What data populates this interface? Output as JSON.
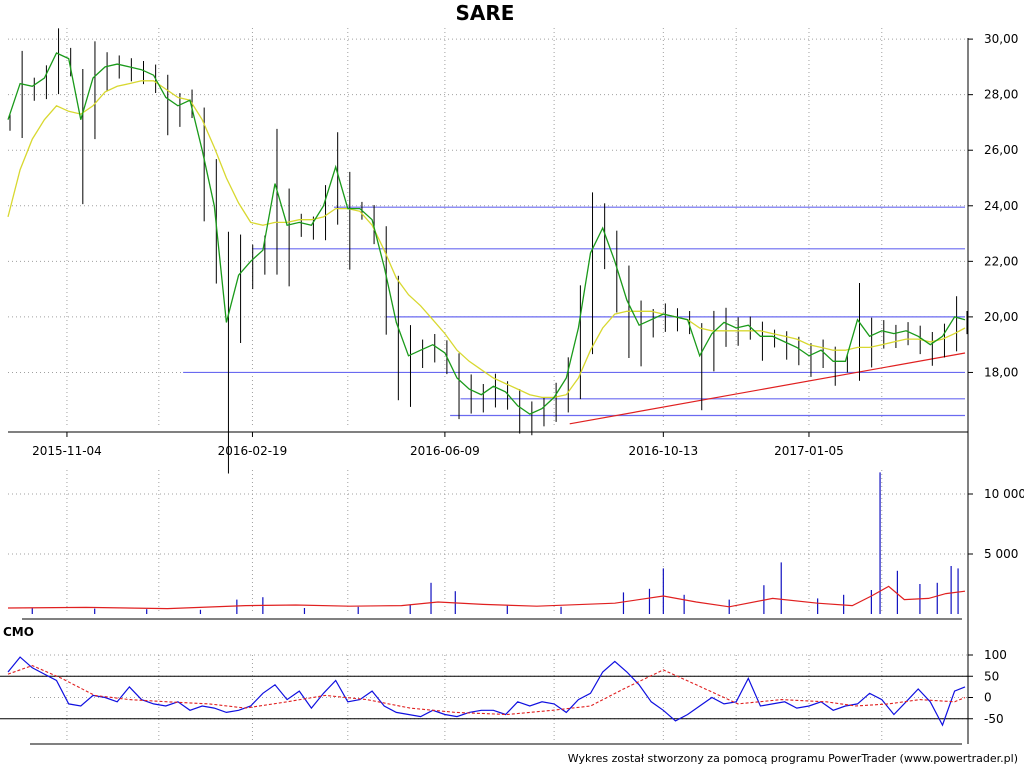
{
  "chart_data": {
    "type": "line",
    "title": "SARE",
    "footer": "Wykres został stworzony za pomocą programu PowerTrader (www.powertrader.pl)",
    "colors": {
      "price_bars": "#000000",
      "ma_fast": "#1a9a1a",
      "ma_slow": "#d8d830",
      "support_lines": "#6a6af0",
      "trend_line": "#e02020",
      "volume_bars": "#1010c0",
      "volume_avg": "#e02020",
      "cmo": "#1010e0",
      "cmo_signal": "#e02020",
      "grid": "#a0a0a0"
    },
    "x_axis": {
      "type": "date",
      "range": [
        "2015-10-01",
        "2017-04-05"
      ],
      "tick_labels": [
        "2015-11-04",
        "2016-02-19",
        "2016-06-09",
        "2016-10-13",
        "2017-01-05"
      ],
      "tick_dates": [
        "2015-11-04",
        "2016-02-19",
        "2016-06-09",
        "2016-10-13",
        "2017-01-05"
      ]
    },
    "price_panel": {
      "ylim": [
        16.0,
        30.4
      ],
      "yticks": [
        18,
        20,
        22,
        24,
        26,
        28,
        30
      ],
      "ytick_labels": [
        "18,00",
        "20,00",
        "22,00",
        "24,00",
        "26,00",
        "28,00",
        "30,00"
      ],
      "grid": true,
      "horizontal_levels": [
        {
          "value": 23.95,
          "from": "2016-04-06",
          "to": "2017-04-05"
        },
        {
          "value": 22.45,
          "from": "2016-02-19",
          "to": "2017-04-05"
        },
        {
          "value": 20.0,
          "from": "2016-05-06",
          "to": "2017-04-05"
        },
        {
          "value": 18.0,
          "from": "2016-01-10",
          "to": "2017-04-05"
        },
        {
          "value": 17.05,
          "from": "2016-06-18",
          "to": "2017-04-05"
        },
        {
          "value": 16.45,
          "from": "2016-06-12",
          "to": "2017-04-05"
        }
      ],
      "trend_line": {
        "start": [
          "2016-08-20",
          16.15
        ],
        "end": [
          "2017-04-05",
          18.7
        ]
      },
      "ma_fast": {
        "x": [
          "2015-10-01",
          "2015-10-08",
          "2015-10-15",
          "2015-10-22",
          "2015-10-29",
          "2015-11-05",
          "2015-11-12",
          "2015-11-19",
          "2015-11-26",
          "2015-12-03",
          "2015-12-10",
          "2015-12-17",
          "2015-12-24",
          "2015-12-31",
          "2016-01-07",
          "2016-01-14",
          "2016-01-21",
          "2016-01-28",
          "2016-02-04",
          "2016-02-11",
          "2016-02-18",
          "2016-02-25",
          "2016-03-03",
          "2016-03-10",
          "2016-03-17",
          "2016-03-24",
          "2016-03-31",
          "2016-04-07",
          "2016-04-14",
          "2016-04-21",
          "2016-04-28",
          "2016-05-05",
          "2016-05-12",
          "2016-05-19",
          "2016-05-26",
          "2016-06-02",
          "2016-06-09",
          "2016-06-16",
          "2016-06-23",
          "2016-06-30",
          "2016-07-07",
          "2016-07-14",
          "2016-07-21",
          "2016-07-28",
          "2016-08-04",
          "2016-08-11",
          "2016-08-18",
          "2016-08-25",
          "2016-09-01",
          "2016-09-08",
          "2016-09-15",
          "2016-09-22",
          "2016-09-29",
          "2016-10-06",
          "2016-10-13",
          "2016-10-20",
          "2016-10-27",
          "2016-11-03",
          "2016-11-10",
          "2016-11-17",
          "2016-11-24",
          "2016-12-01",
          "2016-12-08",
          "2016-12-15",
          "2016-12-22",
          "2016-12-29",
          "2017-01-05",
          "2017-01-12",
          "2017-01-19",
          "2017-01-26",
          "2017-02-02",
          "2017-02-09",
          "2017-02-16",
          "2017-02-23",
          "2017-03-02",
          "2017-03-09",
          "2017-03-16",
          "2017-03-23",
          "2017-03-30",
          "2017-04-05"
        ],
        "y": [
          27.1,
          28.4,
          28.3,
          28.6,
          29.5,
          29.3,
          27.1,
          28.6,
          29.0,
          29.1,
          29.0,
          28.9,
          28.7,
          27.9,
          27.6,
          27.8,
          26.0,
          24.0,
          19.8,
          21.5,
          22.0,
          22.4,
          24.8,
          23.3,
          23.4,
          23.3,
          24.0,
          25.4,
          23.9,
          23.9,
          23.5,
          21.8,
          19.8,
          18.6,
          18.8,
          19.0,
          18.7,
          17.8,
          17.4,
          17.2,
          17.5,
          17.3,
          16.8,
          16.5,
          16.7,
          17.1,
          17.8,
          19.6,
          22.3,
          23.2,
          22.0,
          20.6,
          19.7,
          19.9,
          20.1,
          20.0,
          19.9,
          18.6,
          19.4,
          19.8,
          19.6,
          19.7,
          19.3,
          19.3,
          19.1,
          18.9,
          18.6,
          18.8,
          18.4,
          18.4,
          19.9,
          19.3,
          19.5,
          19.4,
          19.5,
          19.3,
          19.0,
          19.3,
          20.0,
          19.9
        ]
      },
      "ma_slow": {
        "x": [
          "2015-10-01",
          "2015-10-08",
          "2015-10-15",
          "2015-10-22",
          "2015-10-29",
          "2015-11-05",
          "2015-11-12",
          "2015-11-19",
          "2015-11-26",
          "2015-12-03",
          "2015-12-10",
          "2015-12-17",
          "2015-12-24",
          "2015-12-31",
          "2016-01-07",
          "2016-01-14",
          "2016-01-21",
          "2016-01-28",
          "2016-02-04",
          "2016-02-11",
          "2016-02-18",
          "2016-02-25",
          "2016-03-03",
          "2016-03-10",
          "2016-03-17",
          "2016-03-24",
          "2016-03-31",
          "2016-04-07",
          "2016-04-14",
          "2016-04-21",
          "2016-04-28",
          "2016-05-05",
          "2016-05-12",
          "2016-05-19",
          "2016-05-26",
          "2016-06-02",
          "2016-06-09",
          "2016-06-16",
          "2016-06-23",
          "2016-06-30",
          "2016-07-07",
          "2016-07-14",
          "2016-07-21",
          "2016-07-28",
          "2016-08-04",
          "2016-08-11",
          "2016-08-18",
          "2016-08-25",
          "2016-09-01",
          "2016-09-08",
          "2016-09-15",
          "2016-09-22",
          "2016-09-29",
          "2016-10-06",
          "2016-10-13",
          "2016-10-20",
          "2016-10-27",
          "2016-11-03",
          "2016-11-10",
          "2016-11-17",
          "2016-11-24",
          "2016-12-01",
          "2016-12-08",
          "2016-12-15",
          "2016-12-22",
          "2016-12-29",
          "2017-01-05",
          "2017-01-12",
          "2017-01-19",
          "2017-01-26",
          "2017-02-02",
          "2017-02-09",
          "2017-02-16",
          "2017-02-23",
          "2017-03-02",
          "2017-03-09",
          "2017-03-16",
          "2017-03-23",
          "2017-03-30",
          "2017-04-05"
        ],
        "y": [
          23.6,
          25.3,
          26.4,
          27.1,
          27.6,
          27.4,
          27.3,
          27.6,
          28.1,
          28.3,
          28.4,
          28.5,
          28.5,
          28.2,
          27.9,
          27.8,
          27.1,
          26.1,
          25.0,
          24.1,
          23.4,
          23.3,
          23.4,
          23.4,
          23.5,
          23.5,
          23.6,
          23.9,
          23.9,
          23.8,
          23.3,
          22.4,
          21.4,
          20.8,
          20.4,
          19.9,
          19.4,
          18.8,
          18.4,
          18.1,
          17.8,
          17.6,
          17.4,
          17.2,
          17.1,
          17.1,
          17.2,
          17.8,
          18.8,
          19.6,
          20.1,
          20.2,
          20.2,
          20.2,
          20.1,
          20.0,
          19.9,
          19.6,
          19.5,
          19.5,
          19.5,
          19.5,
          19.5,
          19.4,
          19.3,
          19.2,
          19.0,
          18.9,
          18.8,
          18.8,
          18.9,
          18.9,
          19.0,
          19.1,
          19.2,
          19.2,
          19.1,
          19.2,
          19.4,
          19.6
        ]
      }
    },
    "volume_panel": {
      "ylim": [
        0,
        12000
      ],
      "yticks": [
        5000,
        10000
      ],
      "ytick_labels": [
        "5 000",
        "10 000"
      ],
      "bars": {
        "x": [
          "2015-10-15",
          "2015-11-20",
          "2015-12-20",
          "2016-01-20",
          "2016-02-10",
          "2016-02-25",
          "2016-03-20",
          "2016-04-20",
          "2016-05-20",
          "2016-06-01",
          "2016-06-15",
          "2016-07-15",
          "2016-08-15",
          "2016-09-20",
          "2016-10-05",
          "2016-10-13",
          "2016-10-25",
          "2016-11-20",
          "2016-12-10",
          "2016-12-20",
          "2017-01-10",
          "2017-01-25",
          "2017-02-10",
          "2017-02-15",
          "2017-02-25",
          "2017-03-10",
          "2017-03-20",
          "2017-03-28",
          "2017-04-01"
        ],
        "values": [
          500,
          450,
          400,
          350,
          1200,
          1400,
          500,
          600,
          800,
          2600,
          1900,
          700,
          600,
          1800,
          2100,
          3800,
          1600,
          1200,
          2400,
          4300,
          1300,
          1600,
          2000,
          11800,
          3600,
          2500,
          2600,
          4000,
          3800
        ]
      },
      "avg": {
        "x": [
          "2015-10-01",
          "2015-11-15",
          "2016-01-01",
          "2016-02-15",
          "2016-03-15",
          "2016-04-15",
          "2016-05-15",
          "2016-06-05",
          "2016-07-01",
          "2016-08-01",
          "2016-09-15",
          "2016-10-13",
          "2016-11-01",
          "2016-11-20",
          "2016-12-15",
          "2017-01-10",
          "2017-01-30",
          "2017-02-10",
          "2017-02-20",
          "2017-03-01",
          "2017-03-15",
          "2017-03-25",
          "2017-04-05"
        ],
        "values": [
          500,
          550,
          450,
          700,
          750,
          650,
          700,
          1000,
          800,
          650,
          900,
          1500,
          1000,
          600,
          1300,
          900,
          700,
          1500,
          2300,
          1200,
          1300,
          1700,
          1900
        ]
      }
    },
    "cmo_panel": {
      "label": "CMO",
      "ylim": [
        -100,
        100
      ],
      "yticks": [
        -50,
        0,
        50,
        100
      ],
      "ytick_labels": [
        "-50",
        "0",
        "50",
        "100"
      ],
      "reference_lines": [
        50,
        -50
      ],
      "cmo": {
        "x": [
          "2015-10-01",
          "2015-10-08",
          "2015-10-15",
          "2015-10-22",
          "2015-10-29",
          "2015-11-05",
          "2015-11-12",
          "2015-11-19",
          "2015-11-26",
          "2015-12-03",
          "2015-12-10",
          "2015-12-17",
          "2015-12-24",
          "2015-12-31",
          "2016-01-07",
          "2016-01-14",
          "2016-01-21",
          "2016-01-28",
          "2016-02-04",
          "2016-02-11",
          "2016-02-18",
          "2016-02-25",
          "2016-03-03",
          "2016-03-10",
          "2016-03-17",
          "2016-03-24",
          "2016-03-31",
          "2016-04-07",
          "2016-04-14",
          "2016-04-21",
          "2016-04-28",
          "2016-05-05",
          "2016-05-12",
          "2016-05-19",
          "2016-05-26",
          "2016-06-02",
          "2016-06-09",
          "2016-06-16",
          "2016-06-23",
          "2016-06-30",
          "2016-07-07",
          "2016-07-14",
          "2016-07-21",
          "2016-07-28",
          "2016-08-04",
          "2016-08-11",
          "2016-08-18",
          "2016-08-25",
          "2016-09-01",
          "2016-09-08",
          "2016-09-15",
          "2016-09-22",
          "2016-09-29",
          "2016-10-06",
          "2016-10-13",
          "2016-10-20",
          "2016-10-27",
          "2016-11-03",
          "2016-11-10",
          "2016-11-17",
          "2016-11-24",
          "2016-12-01",
          "2016-12-08",
          "2016-12-15",
          "2016-12-22",
          "2016-12-29",
          "2017-01-05",
          "2017-01-12",
          "2017-01-19",
          "2017-01-26",
          "2017-02-02",
          "2017-02-09",
          "2017-02-16",
          "2017-02-23",
          "2017-03-02",
          "2017-03-09",
          "2017-03-16",
          "2017-03-23",
          "2017-03-30",
          "2017-04-05"
        ],
        "values": [
          60,
          95,
          70,
          55,
          40,
          -15,
          -20,
          5,
          0,
          -10,
          25,
          -5,
          -15,
          -20,
          -10,
          -30,
          -20,
          -25,
          -35,
          -30,
          -20,
          10,
          30,
          -5,
          15,
          -25,
          10,
          40,
          -10,
          -5,
          15,
          -20,
          -35,
          -40,
          -45,
          -30,
          -40,
          -45,
          -35,
          -30,
          -30,
          -40,
          -10,
          -20,
          -10,
          -15,
          -35,
          -5,
          10,
          60,
          85,
          60,
          30,
          -10,
          -30,
          -55,
          -40,
          -20,
          0,
          -15,
          -10,
          45,
          -20,
          -15,
          -10,
          -25,
          -20,
          -10,
          -30,
          -20,
          -15,
          10,
          -5,
          -40,
          -10,
          20,
          -10,
          -65,
          15,
          25
        ]
      },
      "signal": {
        "x": [
          "2015-10-01",
          "2015-10-15",
          "2015-11-01",
          "2015-11-20",
          "2015-12-10",
          "2016-01-01",
          "2016-01-25",
          "2016-02-15",
          "2016-03-10",
          "2016-04-01",
          "2016-04-25",
          "2016-05-20",
          "2016-06-15",
          "2016-07-15",
          "2016-08-10",
          "2016-09-01",
          "2016-09-20",
          "2016-10-13",
          "2016-11-01",
          "2016-11-25",
          "2016-12-20",
          "2017-01-15",
          "2017-02-01",
          "2017-02-20",
          "2017-03-10",
          "2017-03-30",
          "2017-04-05"
        ],
        "values": [
          55,
          75,
          45,
          5,
          -5,
          -10,
          -15,
          -25,
          -10,
          5,
          -5,
          -25,
          -35,
          -40,
          -30,
          -20,
          20,
          65,
          30,
          -15,
          -5,
          -10,
          -20,
          -15,
          -5,
          -10,
          0
        ]
      }
    }
  }
}
